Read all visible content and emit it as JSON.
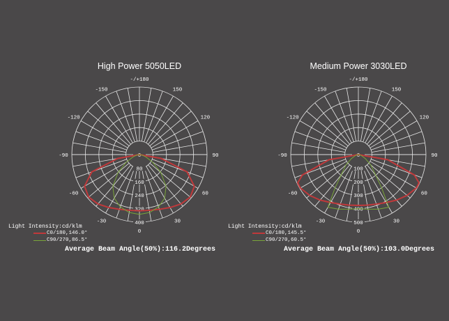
{
  "chart_data": [
    {
      "type": "polar",
      "title": "High Power 5050LED",
      "angle_labels": [
        "-/+180",
        "150",
        "120",
        "90",
        "60",
        "30",
        "0",
        "-30",
        "-60",
        "-90",
        "-120",
        "-150"
      ],
      "radial_ticks": [
        0,
        80,
        160,
        240,
        320,
        400
      ],
      "rmax": 400,
      "legend_title": "Light Intensity:cd/klm",
      "series": [
        {
          "name": "C0/180,146.0°",
          "color": "#c0393b",
          "angles": [
            0,
            10,
            20,
            30,
            40,
            50,
            60,
            70,
            80,
            90
          ],
          "values": [
            333,
            335,
            345,
            362,
            382,
            392,
            375,
            300,
            130,
            0
          ]
        },
        {
          "name": "C90/270,86.5°",
          "color": "#7aa53a",
          "angles": [
            0,
            10,
            20,
            30,
            40,
            50,
            60,
            70,
            80,
            90
          ],
          "values": [
            354,
            348,
            330,
            298,
            245,
            165,
            90,
            40,
            15,
            0
          ]
        }
      ],
      "annotation": "Average Beam Angle(50%):116.2Degrees"
    },
    {
      "type": "polar",
      "title": "Medium Power 3030LED",
      "angle_labels": [
        "-/+180",
        "150",
        "120",
        "90",
        "60",
        "30",
        "0",
        "-30",
        "-60",
        "-90",
        "-120",
        "-150"
      ],
      "radial_ticks": [
        0,
        100,
        200,
        300,
        400,
        500
      ],
      "rmax": 500,
      "legend_title": "Light Intensity:cd/klm",
      "series": [
        {
          "name": "C0/180,145.5°",
          "color": "#c0393b",
          "angles": [
            0,
            10,
            20,
            30,
            40,
            50,
            60,
            65,
            70,
            80,
            90
          ],
          "values": [
            376,
            380,
            390,
            410,
            440,
            470,
            495,
            495,
            440,
            220,
            0
          ]
        },
        {
          "name": "C90/270,60.5°",
          "color": "#7aa53a",
          "angles": [
            0,
            10,
            20,
            30,
            35,
            40,
            50,
            60,
            70,
            80,
            90
          ],
          "values": [
            400,
            410,
            430,
            450,
            300,
            200,
            120,
            60,
            25,
            10,
            0
          ]
        }
      ],
      "annotation": "Average Beam Angle(50%):103.0Degrees"
    }
  ]
}
